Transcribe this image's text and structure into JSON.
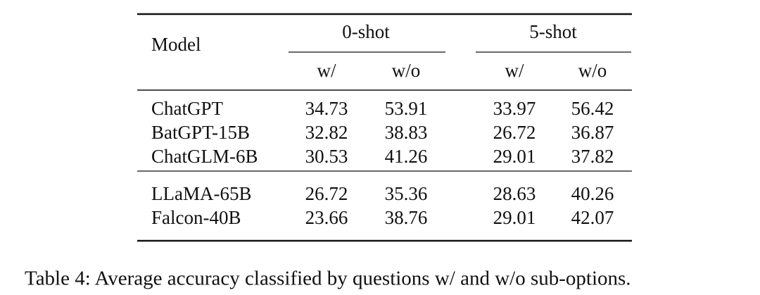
{
  "table": {
    "header": {
      "model": "Model",
      "groups": [
        "0-shot",
        "5-shot"
      ],
      "subheaders": [
        "w/",
        "w/o",
        "w/",
        "w/o"
      ]
    },
    "row_groups": [
      [
        [
          "ChatGPT",
          34.73,
          53.91,
          33.97,
          56.42
        ],
        [
          "BatGPT-15B",
          32.82,
          38.83,
          26.72,
          36.87
        ],
        [
          "ChatGLM-6B",
          30.53,
          41.26,
          29.01,
          37.82
        ]
      ],
      [
        [
          "LLaMA-65B",
          26.72,
          35.36,
          28.63,
          40.26
        ],
        [
          "Falcon-40B",
          23.66,
          38.76,
          29.01,
          42.07
        ]
      ]
    ]
  },
  "caption": "Table 4: Average accuracy classified by questions w/ and w/o sub-options."
}
